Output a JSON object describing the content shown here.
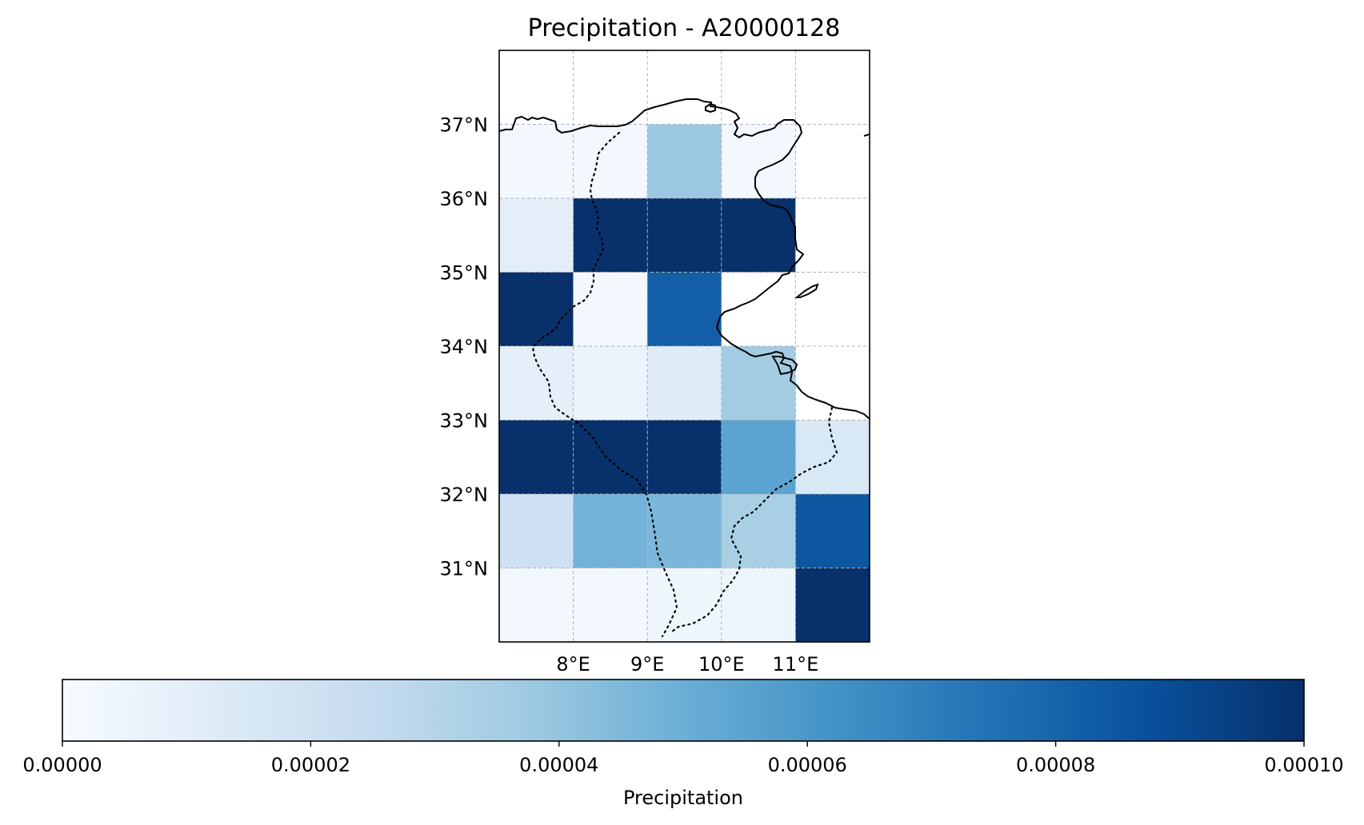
{
  "figure": {
    "title": "Precipitation - A20000128"
  },
  "chart_data": {
    "type": "heatmap",
    "title": "Precipitation - A20000128",
    "colormap": "Blues",
    "x_extent": [
      7.0,
      12.0
    ],
    "y_extent": [
      30.0,
      38.0
    ],
    "x_cell_edges": [
      7,
      8,
      9,
      10,
      11,
      12
    ],
    "y_cell_edges": [
      30,
      31,
      32,
      33,
      34,
      35,
      36,
      37
    ],
    "x_ticks": [
      {
        "value": 8,
        "label": "8°E"
      },
      {
        "value": 9,
        "label": "9°E"
      },
      {
        "value": 10,
        "label": "10°E"
      },
      {
        "value": 11,
        "label": "11°E"
      }
    ],
    "y_ticks": [
      {
        "value": 31,
        "label": "31°N"
      },
      {
        "value": 32,
        "label": "32°N"
      },
      {
        "value": 33,
        "label": "33°N"
      },
      {
        "value": 34,
        "label": "34°N"
      },
      {
        "value": 35,
        "label": "35°N"
      },
      {
        "value": 36,
        "label": "36°N"
      },
      {
        "value": 37,
        "label": "37°N"
      }
    ],
    "grid": true,
    "rows_top_to_bottom": [
      {
        "lat_range": [
          36,
          37
        ],
        "values": [
          2e-06,
          2e-06,
          3.8e-05,
          2e-06,
          null
        ]
      },
      {
        "lat_range": [
          35,
          36
        ],
        "values": [
          1e-05,
          0.0001,
          0.0001,
          0.0001,
          null
        ]
      },
      {
        "lat_range": [
          34,
          35
        ],
        "values": [
          0.0001,
          2e-06,
          8.2e-05,
          null,
          null
        ]
      },
      {
        "lat_range": [
          33,
          34
        ],
        "values": [
          9e-06,
          6e-06,
          1.2e-05,
          3.6e-05,
          null
        ]
      },
      {
        "lat_range": [
          32,
          33
        ],
        "values": [
          0.0001,
          0.0001,
          0.0001,
          5.5e-05,
          1.5e-05
        ]
      },
      {
        "lat_range": [
          31,
          32
        ],
        "values": [
          2.1e-05,
          4.8e-05,
          4.6e-05,
          3.4e-05,
          8.5e-05
        ]
      },
      {
        "lat_range": [
          30,
          31
        ],
        "values": [
          2e-06,
          2e-06,
          4e-06,
          5e-06,
          0.0001
        ]
      }
    ],
    "colorbar": {
      "label": "Precipitation",
      "range": [
        0.0,
        0.0001
      ],
      "orientation": "horizontal",
      "ticks": [
        {
          "value": 0.0,
          "label": "0.00000"
        },
        {
          "value": 2e-05,
          "label": "0.00002"
        },
        {
          "value": 4e-05,
          "label": "0.00004"
        },
        {
          "value": 6e-05,
          "label": "0.00006"
        },
        {
          "value": 8e-05,
          "label": "0.00008"
        },
        {
          "value": 0.0001,
          "label": "0.00010"
        }
      ]
    },
    "colormap_stops": [
      "#f7fbff",
      "#deebf7",
      "#c6dbef",
      "#9ecae1",
      "#6baed6",
      "#4292c6",
      "#2171b5",
      "#08519c",
      "#08306b"
    ],
    "coastline_color": "#000000",
    "border_color": "#000000"
  }
}
